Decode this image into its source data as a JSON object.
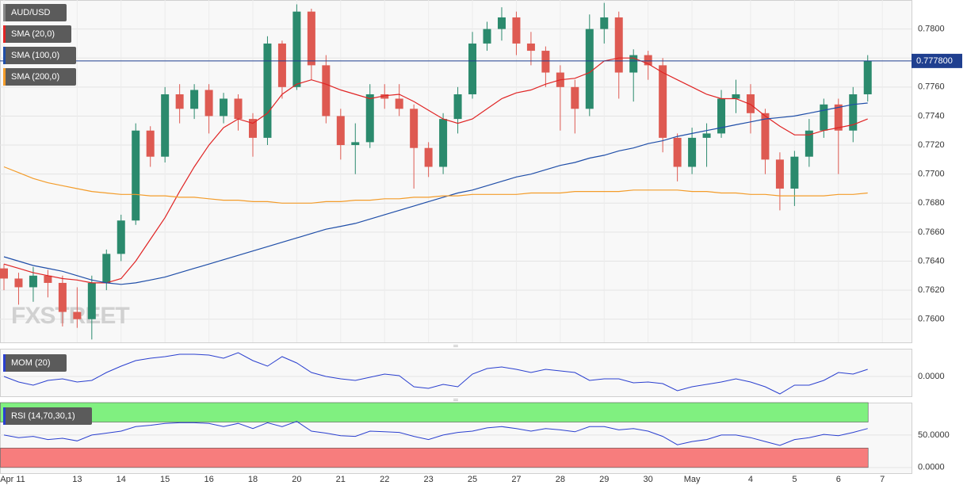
{
  "chart_data": [
    {
      "type": "candlestick",
      "title": "AUD/USD",
      "watermark": "FXSTREET",
      "categories": [
        "Apr 11",
        null,
        null,
        null,
        null,
        "13",
        null,
        null,
        "14",
        null,
        null,
        "15",
        null,
        null,
        "16",
        null,
        null,
        "18",
        null,
        null,
        "20",
        null,
        null,
        "21",
        null,
        null,
        "22",
        null,
        null,
        "23",
        null,
        null,
        "25",
        null,
        null,
        "27",
        null,
        null,
        "28",
        null,
        null,
        "29",
        null,
        null,
        "30",
        null,
        null,
        "May",
        null,
        null,
        null,
        "4",
        null,
        null,
        "5",
        null,
        null,
        "6",
        null,
        null,
        "7"
      ],
      "open": [
        0.7635,
        0.7628,
        0.7622,
        0.763,
        0.7625,
        0.7605,
        0.76,
        0.7625,
        0.7645,
        0.7668,
        0.773,
        0.7712,
        0.7755,
        0.7745,
        0.7758,
        0.774,
        0.7752,
        0.7738,
        0.7725,
        0.779,
        0.776,
        0.7812,
        0.7775,
        0.774,
        0.772,
        0.7722,
        0.7755,
        0.7752,
        0.7745,
        0.7718,
        0.7705,
        0.7738,
        0.7755,
        0.779,
        0.78,
        0.7808,
        0.779,
        0.7785,
        0.777,
        0.776,
        0.7745,
        0.78,
        0.7808,
        0.777,
        0.7782,
        0.7775,
        0.7725,
        0.7705,
        0.7725,
        0.7728,
        0.7752,
        0.7755,
        0.7742,
        0.771,
        0.769,
        0.7712,
        0.773,
        0.7748,
        0.773,
        0.7755,
        null
      ],
      "high": [
        0.7638,
        0.7632,
        0.7636,
        0.7634,
        0.763,
        0.7622,
        0.763,
        0.7648,
        0.7672,
        0.7735,
        0.7733,
        0.776,
        0.7762,
        0.7762,
        0.7762,
        0.7756,
        0.7755,
        0.7742,
        0.7795,
        0.7792,
        0.7817,
        0.7814,
        0.7782,
        0.7745,
        0.7735,
        0.7762,
        0.7762,
        0.7762,
        0.7748,
        0.7722,
        0.7742,
        0.776,
        0.7798,
        0.7805,
        0.7815,
        0.7812,
        0.7798,
        0.7788,
        0.7775,
        0.7765,
        0.781,
        0.7818,
        0.7812,
        0.7786,
        0.7785,
        0.778,
        0.7728,
        0.7732,
        0.7735,
        0.7758,
        0.7765,
        0.7762,
        0.7745,
        0.7715,
        0.7716,
        0.7738,
        0.7752,
        0.7752,
        0.776,
        0.7782,
        null
      ],
      "low": [
        0.762,
        0.761,
        0.7612,
        0.7615,
        0.7595,
        0.7594,
        0.7586,
        0.762,
        0.764,
        0.7665,
        0.7705,
        0.7708,
        0.7735,
        0.7738,
        0.7728,
        0.7735,
        0.773,
        0.7712,
        0.772,
        0.7752,
        0.7758,
        0.7765,
        0.7735,
        0.771,
        0.77,
        0.7718,
        0.7745,
        0.774,
        0.769,
        0.7698,
        0.77,
        0.7728,
        0.7752,
        0.7785,
        0.7792,
        0.7782,
        0.7775,
        0.776,
        0.773,
        0.7728,
        0.774,
        0.779,
        0.7752,
        0.775,
        0.7765,
        0.7715,
        0.7695,
        0.77,
        0.7705,
        0.7725,
        0.7742,
        0.7728,
        0.77,
        0.7675,
        0.7678,
        0.7705,
        0.7725,
        0.77,
        0.7722,
        0.775,
        null
      ],
      "close": [
        0.7628,
        0.7622,
        0.763,
        0.7625,
        0.7605,
        0.76,
        0.7625,
        0.7645,
        0.7668,
        0.773,
        0.7712,
        0.7755,
        0.7745,
        0.7758,
        0.774,
        0.7752,
        0.7738,
        0.7725,
        0.779,
        0.776,
        0.7812,
        0.7775,
        0.774,
        0.772,
        0.7722,
        0.7755,
        0.7752,
        0.7745,
        0.7718,
        0.7705,
        0.7738,
        0.7755,
        0.779,
        0.78,
        0.7808,
        0.779,
        0.7785,
        0.777,
        0.776,
        0.7745,
        0.78,
        0.7808,
        0.777,
        0.7782,
        0.7775,
        0.7725,
        0.7705,
        0.7725,
        0.7728,
        0.7752,
        0.7755,
        0.7742,
        0.771,
        0.769,
        0.7712,
        0.773,
        0.7748,
        0.773,
        0.7755,
        0.7778,
        null
      ],
      "up_color": "#2b8a6d",
      "down_color": "#de5a52",
      "series": [
        {
          "name": "SMA (20,0)",
          "color": "#e02424",
          "values": [
            0.7638,
            0.7635,
            0.7632,
            0.763,
            0.7628,
            0.7627,
            0.7625,
            0.7625,
            0.7628,
            0.764,
            0.7655,
            0.767,
            0.7688,
            0.7705,
            0.772,
            0.7732,
            0.7738,
            0.7735,
            0.7742,
            0.7755,
            0.7762,
            0.7765,
            0.7762,
            0.7758,
            0.7755,
            0.7752,
            0.7754,
            0.7755,
            0.775,
            0.7744,
            0.7738,
            0.7735,
            0.7738,
            0.7745,
            0.7752,
            0.7756,
            0.7758,
            0.7762,
            0.7765,
            0.7766,
            0.777,
            0.7778,
            0.778,
            0.778,
            0.7776,
            0.777,
            0.7765,
            0.776,
            0.7755,
            0.7752,
            0.7752,
            0.7748,
            0.774,
            0.7733,
            0.7727,
            0.7727,
            0.773,
            0.7732,
            0.7734,
            0.7738,
            null
          ]
        },
        {
          "name": "SMA (100,0)",
          "color": "#1f4ea8",
          "values": [
            0.7643,
            0.764,
            0.7637,
            0.7635,
            0.7633,
            0.763,
            0.7627,
            0.7625,
            0.7624,
            0.7625,
            0.7627,
            0.7629,
            0.7632,
            0.7635,
            0.7638,
            0.7641,
            0.7644,
            0.7647,
            0.765,
            0.7653,
            0.7656,
            0.7659,
            0.7662,
            0.7664,
            0.7666,
            0.7669,
            0.7672,
            0.7675,
            0.7678,
            0.7681,
            0.7684,
            0.7687,
            0.7689,
            0.7692,
            0.7695,
            0.7698,
            0.77,
            0.7703,
            0.7706,
            0.7708,
            0.7711,
            0.7713,
            0.7716,
            0.7718,
            0.7721,
            0.7723,
            0.7726,
            0.7728,
            0.773,
            0.7732,
            0.7734,
            0.7736,
            0.7738,
            0.7739,
            0.774,
            0.7742,
            0.7744,
            0.7746,
            0.7748,
            0.7749,
            null
          ]
        },
        {
          "name": "SMA (200,0)",
          "color": "#f39c2a",
          "values": [
            0.7705,
            0.7701,
            0.7697,
            0.7694,
            0.7692,
            0.769,
            0.7688,
            0.7687,
            0.7686,
            0.7686,
            0.7685,
            0.7685,
            0.7684,
            0.7684,
            0.7683,
            0.7682,
            0.7682,
            0.7681,
            0.7681,
            0.768,
            0.768,
            0.768,
            0.7681,
            0.7681,
            0.7682,
            0.7682,
            0.7683,
            0.7683,
            0.7684,
            0.7684,
            0.7685,
            0.7685,
            0.7686,
            0.7686,
            0.7686,
            0.7686,
            0.7687,
            0.7687,
            0.7687,
            0.7688,
            0.7688,
            0.7688,
            0.7688,
            0.7689,
            0.7689,
            0.7689,
            0.7689,
            0.7688,
            0.7688,
            0.7687,
            0.7687,
            0.7686,
            0.7686,
            0.7685,
            0.7685,
            0.7685,
            0.7685,
            0.7686,
            0.7686,
            0.7687,
            null
          ]
        }
      ],
      "ylim": [
        0.7584,
        0.782
      ],
      "yticks": [
        {
          "value": 0.76,
          "label": "0.7600"
        },
        {
          "value": 0.762,
          "label": "0.7620"
        },
        {
          "value": 0.764,
          "label": "0.7640"
        },
        {
          "value": 0.766,
          "label": "0.7660"
        },
        {
          "value": 0.768,
          "label": "0.7680"
        },
        {
          "value": 0.77,
          "label": "0.7700"
        },
        {
          "value": 0.772,
          "label": "0.7720"
        },
        {
          "value": 0.774,
          "label": "0.7740"
        },
        {
          "value": 0.776,
          "label": "0.7760"
        },
        {
          "value": 0.778,
          "label": "0.7780"
        },
        {
          "value": 0.78,
          "label": "0.7800"
        }
      ],
      "grid": true,
      "last_price": {
        "value": 0.7778,
        "label": "0.777800"
      },
      "last_price_color": "#1f3f8f"
    },
    {
      "type": "line",
      "title": "MOM (20)",
      "color": "#2a3fcf",
      "values": [
        0,
        -0.0014,
        -0.0022,
        -0.001,
        -0.0006,
        -0.0014,
        -0.001,
        0.001,
        0.0026,
        0.004,
        0.0046,
        0.005,
        0.0056,
        0.0056,
        0.0054,
        0.0046,
        0.006,
        0.004,
        0.0026,
        0.005,
        0.0034,
        0.001,
        0,
        -0.0006,
        -0.001,
        -0.0002,
        0.0006,
        0.0002,
        -0.0026,
        -0.003,
        -0.002,
        -0.0026,
        0.0006,
        0.002,
        0.0024,
        0.0018,
        0.001,
        0.0018,
        0.0014,
        0.001,
        -0.001,
        -0.0006,
        -0.0006,
        -0.0016,
        -0.0014,
        -0.0018,
        -0.0036,
        -0.0026,
        -0.002,
        -0.0014,
        -0.0006,
        -0.0014,
        -0.0026,
        -0.0044,
        -0.0022,
        -0.0022,
        -0.001,
        0.001,
        0.0006,
        0.0018,
        null
      ],
      "ylim": [
        -0.005,
        0.007
      ],
      "yticks": [
        {
          "value": 0,
          "label": "0.0000"
        }
      ],
      "grid": true
    },
    {
      "type": "rsi",
      "title": "RSI (14,70,30,1)",
      "color": "#2a3fcf",
      "values": [
        50,
        46,
        48,
        43,
        45,
        41,
        50,
        53,
        56,
        63,
        65,
        68,
        69,
        69,
        68,
        63,
        68,
        60,
        69,
        63,
        71,
        56,
        53,
        49,
        48,
        56,
        55,
        54,
        48,
        43,
        50,
        54,
        56,
        61,
        63,
        60,
        56,
        60,
        58,
        55,
        63,
        63,
        58,
        60,
        56,
        48,
        35,
        40,
        43,
        50,
        50,
        46,
        40,
        34,
        43,
        46,
        51,
        49,
        54,
        60,
        null
      ],
      "ylim": [
        -8.75,
        100
      ],
      "yticks": [
        {
          "value": 50,
          "label": "50.0000"
        },
        {
          "value": 0,
          "label": "0.0000"
        }
      ],
      "grid": true,
      "bands": [
        {
          "from": 70,
          "to": 100,
          "color": "#80f080"
        },
        {
          "from": 0,
          "to": 30,
          "color": "#f77d7d"
        }
      ]
    }
  ]
}
